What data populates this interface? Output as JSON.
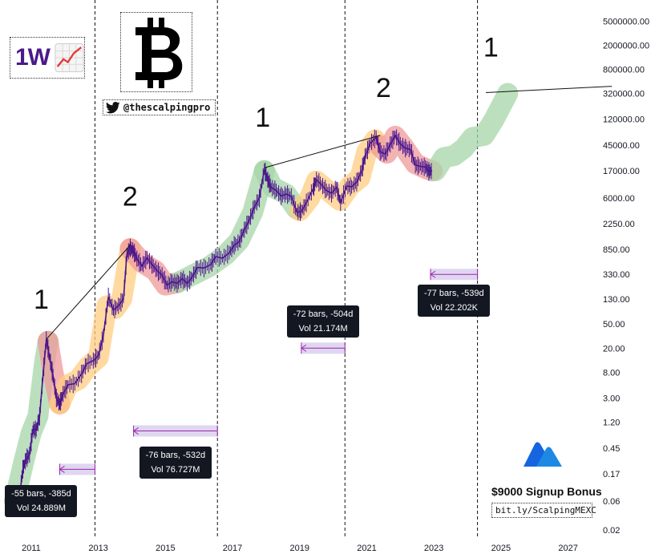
{
  "timeframe": "1W",
  "handle": "@thescalpingpro",
  "promo": {
    "title": "$9000 Signup Bonus",
    "link": "bit.ly/ScalpingMEXC"
  },
  "colors": {
    "green": "#a5d6a7",
    "orange": "#ffcc80",
    "red": "#ef9a9a",
    "candle": "#4a148c",
    "range": "#9c27b0",
    "range_fill": "#d1c4e9",
    "tooltip": "#131722"
  },
  "icons": {
    "logo": "bitcoin-logo-icon",
    "twitter": "twitter-icon",
    "link": "link-icon",
    "chart_emoji": "chart-increasing-icon",
    "mexc": "mexc-logo-icon"
  },
  "chart_data": {
    "type": "line",
    "title": "",
    "xlabel": "",
    "ylabel": "",
    "y_scale": "log",
    "ylim": [
      0.02,
      9000000
    ],
    "xlim": [
      2010.5,
      2028.3
    ],
    "y_ticks": [
      "5000000.00",
      "2000000.00",
      "800000.00",
      "320000.00",
      "120000.00",
      "45000.00",
      "17000.00",
      "6000.00",
      "2250.00",
      "850.00",
      "330.00",
      "130.00",
      "50.00",
      "20.00",
      "8.00",
      "3.00",
      "1.20",
      "0.45",
      "0.17",
      "0.06",
      "0.02"
    ],
    "x_ticks": [
      "2011",
      "2013",
      "2015",
      "2017",
      "2019",
      "2021",
      "2023",
      "2025",
      "2027"
    ],
    "x_tick_values": [
      2011,
      2013,
      2015,
      2017,
      2019,
      2021,
      2023,
      2025,
      2027
    ],
    "halving_lines": [
      2012.9,
      2016.55,
      2020.35,
      2024.3
    ],
    "price_series": [
      [
        2010.55,
        0.06
      ],
      [
        2010.65,
        0.07
      ],
      [
        2010.75,
        0.2
      ],
      [
        2010.85,
        0.3
      ],
      [
        2010.95,
        0.35
      ],
      [
        2011.05,
        0.9
      ],
      [
        2011.15,
        0.9
      ],
      [
        2011.25,
        1.5
      ],
      [
        2011.35,
        7
      ],
      [
        2011.45,
        28
      ],
      [
        2011.55,
        14
      ],
      [
        2011.65,
        7
      ],
      [
        2011.75,
        3
      ],
      [
        2011.85,
        2.4
      ],
      [
        2011.95,
        3.5
      ],
      [
        2012.1,
        5
      ],
      [
        2012.3,
        5.2
      ],
      [
        2012.5,
        7.5
      ],
      [
        2012.65,
        11
      ],
      [
        2012.85,
        12.5
      ],
      [
        2013.0,
        15
      ],
      [
        2013.15,
        32
      ],
      [
        2013.3,
        140
      ],
      [
        2013.45,
        85
      ],
      [
        2013.6,
        100
      ],
      [
        2013.75,
        130
      ],
      [
        2013.85,
        700
      ],
      [
        2013.95,
        900
      ],
      [
        2014.05,
        800
      ],
      [
        2014.15,
        600
      ],
      [
        2014.3,
        450
      ],
      [
        2014.45,
        620
      ],
      [
        2014.6,
        480
      ],
      [
        2014.75,
        380
      ],
      [
        2014.9,
        320
      ],
      [
        2015.05,
        220
      ],
      [
        2015.2,
        250
      ],
      [
        2015.35,
        235
      ],
      [
        2015.5,
        280
      ],
      [
        2015.65,
        235
      ],
      [
        2015.8,
        300
      ],
      [
        2015.95,
        430
      ],
      [
        2016.15,
        420
      ],
      [
        2016.35,
        480
      ],
      [
        2016.5,
        650
      ],
      [
        2016.7,
        610
      ],
      [
        2016.9,
        750
      ],
      [
        2017.05,
        1000
      ],
      [
        2017.2,
        1150
      ],
      [
        2017.35,
        1800
      ],
      [
        2017.5,
        2600
      ],
      [
        2017.65,
        4300
      ],
      [
        2017.8,
        6000
      ],
      [
        2017.95,
        18000
      ],
      [
        2018.05,
        12000
      ],
      [
        2018.15,
        9000
      ],
      [
        2018.3,
        8000
      ],
      [
        2018.45,
        6500
      ],
      [
        2018.6,
        7000
      ],
      [
        2018.75,
        6400
      ],
      [
        2018.92,
        3500
      ],
      [
        2019.05,
        3600
      ],
      [
        2019.2,
        5000
      ],
      [
        2019.4,
        8500
      ],
      [
        2019.5,
        12000
      ],
      [
        2019.65,
        10000
      ],
      [
        2019.8,
        8000
      ],
      [
        2019.95,
        7200
      ],
      [
        2020.1,
        9000
      ],
      [
        2020.22,
        5000
      ],
      [
        2020.4,
        9500
      ],
      [
        2020.55,
        9200
      ],
      [
        2020.7,
        11000
      ],
      [
        2020.85,
        17000
      ],
      [
        2020.95,
        29000
      ],
      [
        2021.1,
        48000
      ],
      [
        2021.28,
        60000
      ],
      [
        2021.4,
        35000
      ],
      [
        2021.55,
        32000
      ],
      [
        2021.7,
        46000
      ],
      [
        2021.85,
        65000
      ],
      [
        2022.0,
        47000
      ],
      [
        2022.15,
        40000
      ],
      [
        2022.3,
        38000
      ],
      [
        2022.45,
        21000
      ],
      [
        2022.6,
        20000
      ],
      [
        2022.75,
        19500
      ],
      [
        2022.85,
        16500
      ],
      [
        2022.95,
        16800
      ]
    ],
    "color_zones": [
      {
        "color": "green",
        "points": [
          [
            2010.5,
            0.06
          ],
          [
            2010.8,
            0.3
          ],
          [
            2011.0,
            0.8
          ],
          [
            2011.2,
            1.5
          ],
          [
            2011.4,
            12
          ],
          [
            2011.5,
            26
          ]
        ]
      },
      {
        "color": "red",
        "points": [
          [
            2011.5,
            26
          ],
          [
            2011.65,
            8
          ],
          [
            2011.85,
            2.4
          ]
        ]
      },
      {
        "color": "orange",
        "points": [
          [
            2011.85,
            2.4
          ],
          [
            2012.1,
            5
          ],
          [
            2012.4,
            6
          ],
          [
            2012.7,
            10
          ],
          [
            2013.0,
            14
          ],
          [
            2013.25,
            100
          ],
          [
            2013.5,
            90
          ],
          [
            2013.7,
            130
          ],
          [
            2013.95,
            880
          ]
        ]
      },
      {
        "color": "red",
        "points": [
          [
            2013.95,
            880
          ],
          [
            2014.3,
            520
          ],
          [
            2014.7,
            380
          ],
          [
            2015.0,
            220
          ],
          [
            2015.35,
            240
          ]
        ]
      },
      {
        "color": "green",
        "points": [
          [
            2015.35,
            240
          ],
          [
            2015.8,
            320
          ],
          [
            2016.3,
            440
          ],
          [
            2016.8,
            700
          ],
          [
            2017.2,
            1200
          ],
          [
            2017.6,
            3500
          ],
          [
            2017.95,
            17000
          ]
        ]
      },
      {
        "color": "green",
        "points": [
          [
            2017.95,
            17000
          ],
          [
            2018.2,
            9000
          ],
          [
            2018.6,
            7000
          ],
          [
            2018.9,
            4000
          ]
        ]
      },
      {
        "color": "orange",
        "points": [
          [
            2019.0,
            3700
          ],
          [
            2019.3,
            6000
          ],
          [
            2019.5,
            11500
          ],
          [
            2019.9,
            7500
          ],
          [
            2020.2,
            5500
          ],
          [
            2020.5,
            9500
          ],
          [
            2020.8,
            13000
          ],
          [
            2021.0,
            35000
          ],
          [
            2021.25,
            55000
          ]
        ]
      },
      {
        "color": "red",
        "points": [
          [
            2021.35,
            45000
          ],
          [
            2021.6,
            33000
          ],
          [
            2021.85,
            63000
          ],
          [
            2022.1,
            42000
          ],
          [
            2022.45,
            22000
          ],
          [
            2022.8,
            18000
          ],
          [
            2022.95,
            16800
          ]
        ]
      },
      {
        "color": "green",
        "points": [
          [
            2023.05,
            17000
          ],
          [
            2023.3,
            28000
          ],
          [
            2023.6,
            30000
          ],
          [
            2023.9,
            40000
          ],
          [
            2024.15,
            60000
          ],
          [
            2024.5,
            65000
          ],
          [
            2024.8,
            120000
          ],
          [
            2025.2,
            320000
          ]
        ]
      }
    ],
    "wave_labels": [
      {
        "text": "1",
        "x": 2011.3,
        "y": 90
      },
      {
        "text": "2",
        "x": 2013.95,
        "y": 4500
      },
      {
        "text": "1",
        "x": 2017.9,
        "y": 90000
      },
      {
        "text": "2",
        "x": 2021.5,
        "y": 280000
      },
      {
        "text": "1",
        "x": 2024.7,
        "y": 1300000
      }
    ],
    "trend_lines": [
      {
        "from": [
          2011.45,
          28
        ],
        "to": [
          2013.95,
          1000
        ]
      },
      {
        "from": [
          2017.95,
          19000
        ],
        "to": [
          2021.4,
          65000
        ]
      },
      {
        "from": [
          2024.55,
          330000
        ],
        "to": [
          2028.3,
          420000
        ]
      }
    ],
    "ranges": [
      {
        "x1": 2011.85,
        "x2": 2012.9,
        "y": 0.2,
        "bars": "-55 bars, -385d",
        "vol": "Vol 24.889M",
        "label_x": 2011.3,
        "label_y": 0.06
      },
      {
        "x1": 2014.05,
        "x2": 2016.55,
        "y": 0.86,
        "bars": "-76 bars, -532d",
        "vol": "Vol 76.727M",
        "label_x": 2015.3,
        "label_y": 0.26
      },
      {
        "x1": 2019.05,
        "x2": 2020.35,
        "y": 20,
        "bars": "-72 bars, -504d",
        "vol": "Vol 21.174M",
        "label_x": 2019.7,
        "label_y": 55
      },
      {
        "x1": 2022.9,
        "x2": 2024.3,
        "y": 330,
        "bars": "-77 bars, -539d",
        "vol": "Vol 22.202K",
        "label_x": 2023.6,
        "label_y": 120
      }
    ]
  }
}
